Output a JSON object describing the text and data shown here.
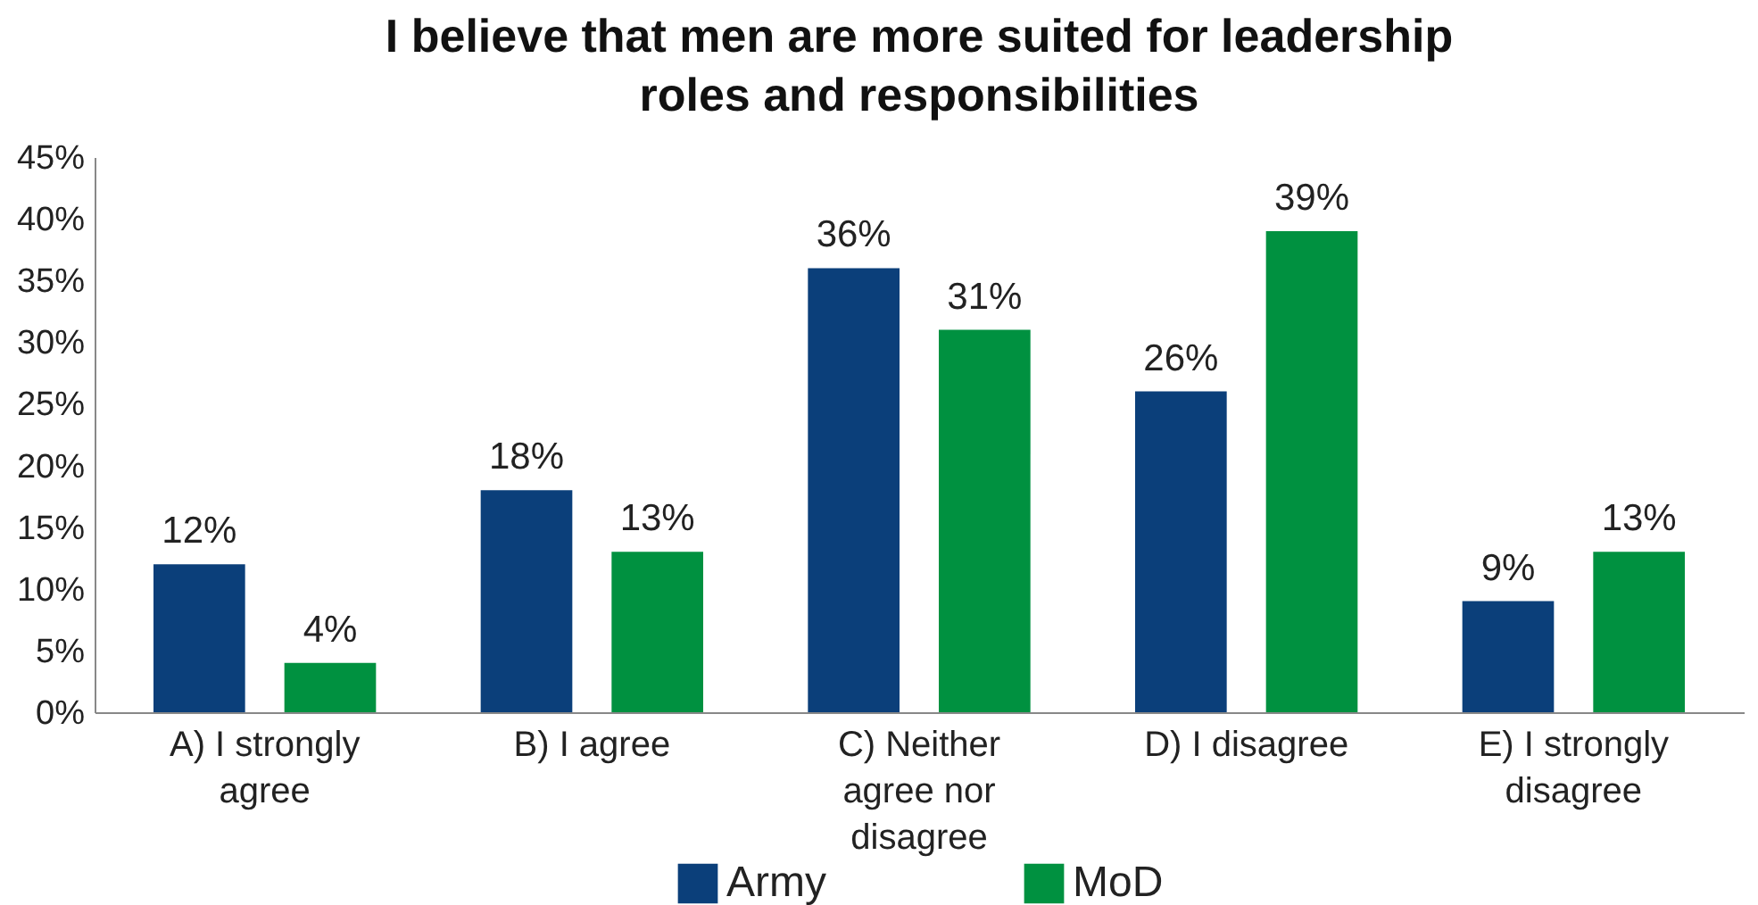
{
  "chart_data": {
    "type": "bar",
    "title": "I believe that men are more suited for leadership roles and responsibilities",
    "categories": [
      "A) I strongly agree",
      "B) I agree",
      "C) Neither agree nor disagree",
      "D) I disagree",
      "E) I strongly disagree"
    ],
    "series": [
      {
        "name": "Army",
        "color": "#0b3f7a",
        "values": [
          12,
          18,
          36,
          26,
          9
        ],
        "value_labels": [
          "12%",
          "18%",
          "36%",
          "26%",
          "9%"
        ]
      },
      {
        "name": "MoD",
        "color": "#009140",
        "values": [
          4,
          13,
          31,
          39,
          13
        ],
        "value_labels": [
          "4%",
          "13%",
          "31%",
          "39%",
          "13%"
        ]
      }
    ],
    "ylim": [
      0,
      45
    ],
    "yticks": [
      {
        "value": 0,
        "label": "0%"
      },
      {
        "value": 5,
        "label": "5%"
      },
      {
        "value": 10,
        "label": "10%"
      },
      {
        "value": 15,
        "label": "15%"
      },
      {
        "value": 20,
        "label": "20%"
      },
      {
        "value": 25,
        "label": "25%"
      },
      {
        "value": 30,
        "label": "30%"
      },
      {
        "value": 35,
        "label": "35%"
      },
      {
        "value": 40,
        "label": "40%"
      },
      {
        "value": 45,
        "label": "45%"
      }
    ],
    "grid": false,
    "legend": "bottom"
  }
}
